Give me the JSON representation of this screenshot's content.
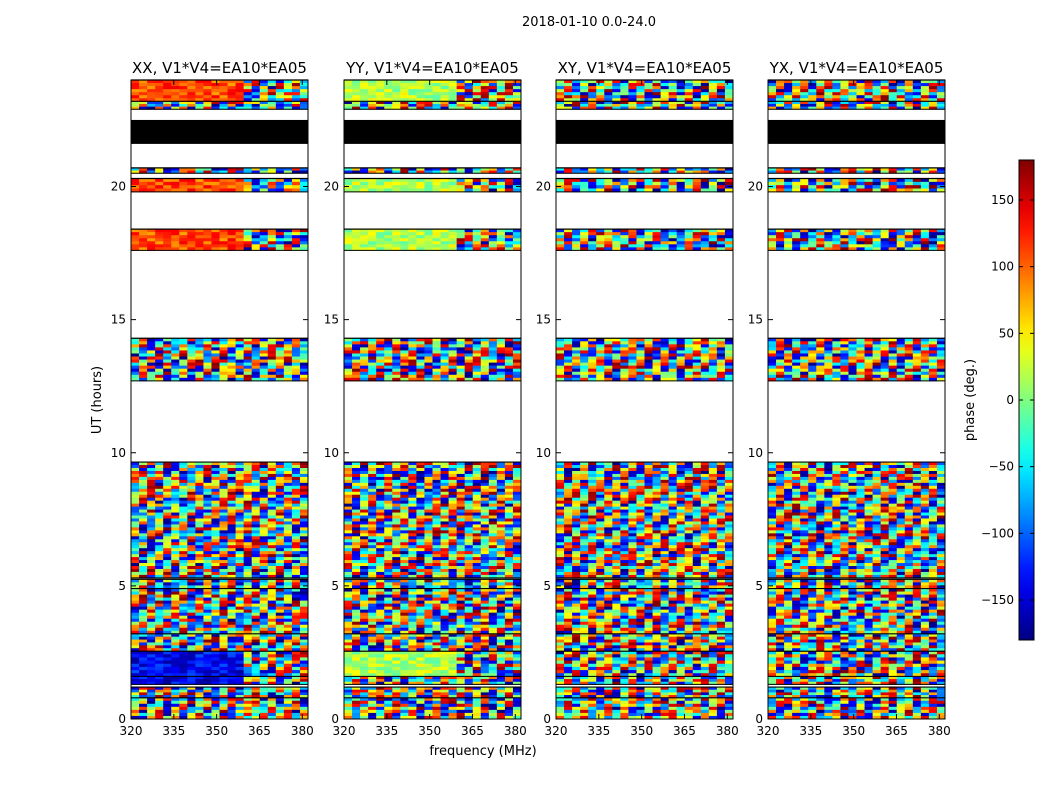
{
  "chart_data": {
    "type": "heatmap",
    "figure_title": "2018-01-10 0.0-24.0",
    "xlabel": "frequency (MHz)",
    "ylabel": "UT (hours)",
    "xlim": [
      320,
      382
    ],
    "ylim": [
      0,
      24
    ],
    "xticks": [
      320,
      335,
      350,
      365,
      380
    ],
    "yticks": [
      0,
      5,
      10,
      15,
      20
    ],
    "panels": [
      {
        "title": "XX, V1*V4=EA10*EA05",
        "pol": "XX"
      },
      {
        "title": "YY, V1*V4=EA10*EA05",
        "pol": "YY"
      },
      {
        "title": "XY, V1*V4=EA10*EA05",
        "pol": "XY"
      },
      {
        "title": "YX, V1*V4=EA10*EA05",
        "pol": "YX"
      }
    ],
    "data_time_ranges_hours": [
      [
        0.0,
        0.8
      ],
      [
        0.8,
        1.2
      ],
      [
        1.3,
        1.6
      ],
      [
        1.6,
        2.55
      ],
      [
        2.55,
        3.2
      ],
      [
        3.2,
        4.9
      ],
      [
        4.9,
        5.25
      ],
      [
        5.3,
        9.65
      ],
      [
        12.7,
        14.3
      ],
      [
        17.6,
        18.4
      ],
      [
        19.8,
        20.3
      ],
      [
        20.5,
        20.7
      ],
      [
        21.6,
        22.5
      ],
      [
        22.9,
        23.2
      ],
      [
        23.2,
        24.0
      ]
    ],
    "blank_gaps_hours": [
      [
        9.65,
        12.7
      ],
      [
        14.3,
        17.6
      ],
      [
        18.4,
        19.8
      ]
    ],
    "colorbar": {
      "label": "phase (deg.)",
      "colormap": "jet",
      "range": [
        -180,
        180
      ],
      "ticks": [
        150,
        100,
        50,
        0,
        -50,
        -100,
        -150
      ],
      "tick_labels": [
        "150",
        "100",
        "50",
        "0",
        "−50",
        "−100",
        "−150"
      ]
    }
  }
}
